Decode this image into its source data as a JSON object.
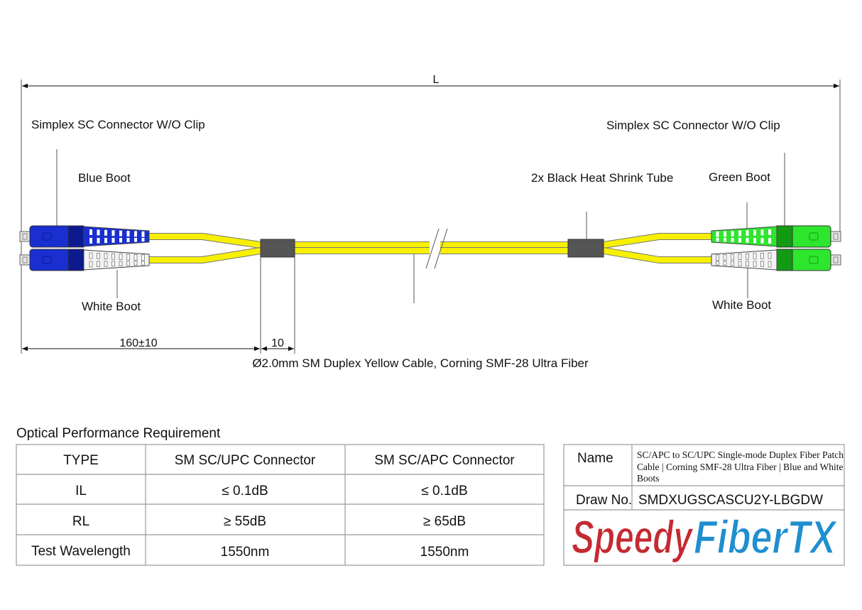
{
  "drawing": {
    "length_label": "L",
    "left_connector_label": "Simplex SC Connector W/O Clip",
    "right_connector_label": "Simplex SC Connector W/O Clip",
    "blue_boot_label": "Blue Boot",
    "left_white_boot_label": "White Boot",
    "heat_shrink_label": "2x Black Heat Shrink Tube",
    "green_boot_label": "Green Boot",
    "right_white_boot_label": "White Boot",
    "breakout_dim": "160±10",
    "shrink_dim": "10",
    "cable_caption": "Ø2.0mm SM Duplex Yellow Cable, Corning SMF-28 Ultra Fiber",
    "colors": {
      "cable": "#f7f000",
      "blue_body": "#1a2fd0",
      "blue_band": "#0c1a90",
      "green_body": "#2ee62e",
      "green_band": "#129a12",
      "white_boot": "#f4f4f4",
      "heat_shrink": "#555555"
    }
  },
  "performance": {
    "title": "Optical Performance Requirement",
    "headers": [
      "TYPE",
      "SM SC/UPC Connector",
      "SM SC/APC Connector"
    ],
    "rows": [
      [
        "IL",
        "≤ 0.1dB",
        "≤ 0.1dB"
      ],
      [
        "RL",
        "≥ 55dB",
        "≥ 65dB"
      ],
      [
        "Test Wavelength",
        "1550nm",
        "1550nm"
      ]
    ]
  },
  "title_block": {
    "name_label": "Name",
    "name_lines": [
      "SC/APC to SC/UPC Single-mode Duplex Fiber Patch",
      "Cable | Corning SMF-28 Ultra Fiber | Blue and White",
      "Boots"
    ],
    "draw_no_label": "Draw No.",
    "draw_no": "SMDXUGSCASCU2Y-LBGDW",
    "logo_part1": "Speedy",
    "logo_part2": "FiberTX",
    "logo_color1": "#c42a32",
    "logo_color2": "#1f8fd0"
  }
}
